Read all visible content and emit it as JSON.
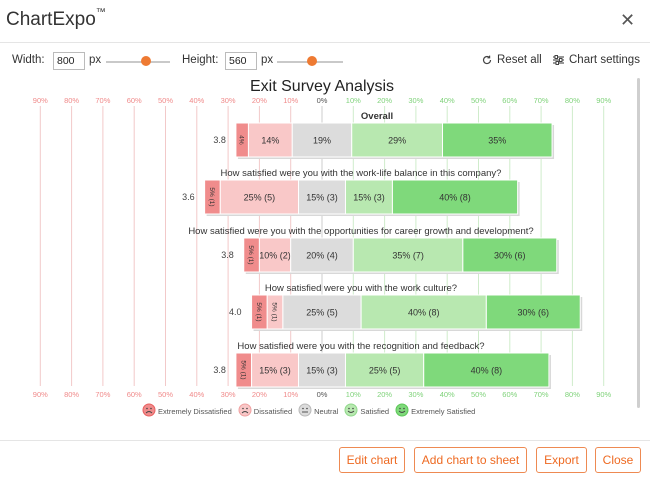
{
  "app": {
    "title": "ChartExpo",
    "trademark": "™"
  },
  "controls": {
    "width_label": "Width:",
    "width_value": "800",
    "width_unit": "px",
    "height_label": "Height:",
    "height_value": "560",
    "height_unit": "px",
    "reset_label": "Reset all",
    "settings_label": "Chart settings"
  },
  "buttons": {
    "edit": "Edit chart",
    "add": "Add chart to sheet",
    "export": "Export",
    "close": "Close"
  },
  "colors": {
    "accent": "#ee7a32",
    "extremely_dissatisfied": "#f08c8c",
    "dissatisfied": "#f9c8c8",
    "neutral": "#dcdcdc",
    "satisfied": "#b8e8b0",
    "extremely_satisfied": "#7fd97b"
  },
  "chart_data": {
    "type": "bar",
    "subtype": "diverging-stacked-likert",
    "title": "Exit Survey Analysis",
    "axis_ticks": [
      "90%",
      "80%",
      "70%",
      "60%",
      "50%",
      "40%",
      "30%",
      "20%",
      "10%",
      "0%",
      "10%",
      "20%",
      "30%",
      "40%",
      "50%",
      "60%",
      "70%",
      "80%",
      "90%"
    ],
    "xlim": [
      -90,
      90
    ],
    "legend": [
      "Extremely Dissatisfied",
      "Dissatisfied",
      "Neutral",
      "Satisfied",
      "Extremely Satisfied"
    ],
    "legend_position": "bottom",
    "rows": [
      {
        "label": "Overall",
        "score": "3.8",
        "values": [
          4,
          14,
          19,
          29,
          35
        ],
        "labels": [
          "4%",
          "14%",
          "19%",
          "29%",
          "35%"
        ]
      },
      {
        "label": "How satisfied were you with the work-life balance in this company?",
        "score": "3.6",
        "values": [
          5,
          25,
          15,
          15,
          40
        ],
        "labels": [
          "5% (1)",
          "25% (5)",
          "15% (3)",
          "15% (3)",
          "40% (8)"
        ]
      },
      {
        "label": "How satisfied were you with the opportunities for career growth and development?",
        "score": "3.8",
        "values": [
          5,
          10,
          20,
          35,
          30
        ],
        "labels": [
          "5% (1)",
          "10% (2)",
          "20% (4)",
          "35% (7)",
          "30% (6)"
        ]
      },
      {
        "label": "How satisfied were you with the work culture?",
        "score": "4.0",
        "values": [
          5,
          5,
          25,
          40,
          30
        ],
        "labels": [
          "5% (1)",
          "5% (1)",
          "25% (5)",
          "40% (8)",
          "30% (6)"
        ]
      },
      {
        "label": "How satisfied were you with the recognition and feedback?",
        "score": "3.8",
        "values": [
          5,
          15,
          15,
          25,
          40
        ],
        "labels": [
          "5% (1)",
          "15% (3)",
          "15% (3)",
          "25% (5)",
          "40% (8)"
        ]
      }
    ]
  }
}
